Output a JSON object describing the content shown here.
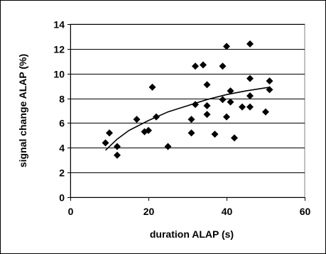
{
  "chart_data": {
    "type": "scatter",
    "title": "",
    "xlabel": "duration ALAP (s)",
    "ylabel": "signal change ALAP (%)",
    "xlim": [
      0,
      60
    ],
    "ylim": [
      0,
      14
    ],
    "x_ticks": [
      0,
      20,
      40,
      60
    ],
    "y_ticks": [
      0,
      2,
      4,
      6,
      8,
      10,
      12,
      14
    ],
    "grid": "horizontal",
    "legend": "none",
    "marker": "diamond",
    "colors": {
      "marker": "#000000",
      "trendline": "#000000",
      "grid": "#000000",
      "axis": "#000000",
      "plot_border": "#808080"
    },
    "points": [
      {
        "x": 9,
        "y": 4.4
      },
      {
        "x": 10,
        "y": 5.2
      },
      {
        "x": 12,
        "y": 4.1
      },
      {
        "x": 12,
        "y": 3.4
      },
      {
        "x": 17,
        "y": 6.3
      },
      {
        "x": 19,
        "y": 5.3
      },
      {
        "x": 20,
        "y": 5.4
      },
      {
        "x": 21,
        "y": 8.9
      },
      {
        "x": 22,
        "y": 6.5
      },
      {
        "x": 25,
        "y": 4.1
      },
      {
        "x": 31,
        "y": 5.2
      },
      {
        "x": 31,
        "y": 6.3
      },
      {
        "x": 32,
        "y": 10.6
      },
      {
        "x": 32,
        "y": 7.5
      },
      {
        "x": 34,
        "y": 10.7
      },
      {
        "x": 35,
        "y": 9.1
      },
      {
        "x": 35,
        "y": 7.4
      },
      {
        "x": 35,
        "y": 6.7
      },
      {
        "x": 37,
        "y": 5.1
      },
      {
        "x": 39,
        "y": 10.6
      },
      {
        "x": 39,
        "y": 7.9
      },
      {
        "x": 40,
        "y": 12.2
      },
      {
        "x": 40,
        "y": 6.5
      },
      {
        "x": 41,
        "y": 8.6
      },
      {
        "x": 41,
        "y": 7.7
      },
      {
        "x": 42,
        "y": 4.8
      },
      {
        "x": 44,
        "y": 7.3
      },
      {
        "x": 46,
        "y": 12.4
      },
      {
        "x": 46,
        "y": 9.6
      },
      {
        "x": 46,
        "y": 8.2
      },
      {
        "x": 46,
        "y": 7.3
      },
      {
        "x": 50,
        "y": 6.9
      },
      {
        "x": 51,
        "y": 9.4
      },
      {
        "x": 51,
        "y": 8.7
      }
    ],
    "trendline": {
      "type": "logarithmic",
      "x": [
        9,
        12,
        15,
        20,
        25,
        30,
        35,
        40,
        45,
        51
      ],
      "y": [
        3.8,
        4.7,
        5.4,
        6.2,
        6.9,
        7.4,
        7.9,
        8.3,
        8.6,
        8.9
      ]
    }
  }
}
